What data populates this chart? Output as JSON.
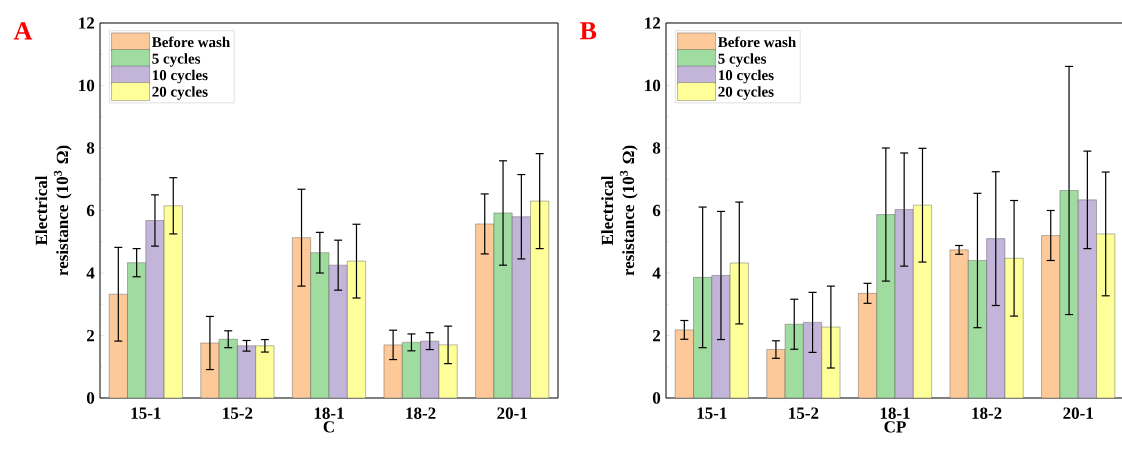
{
  "chart_data": [
    {
      "type": "bar",
      "title": "A",
      "xlabel": "C",
      "ylabel": "Electrical resistance (10$^{3}$ Ω)",
      "categories": [
        "15-1",
        "15-2",
        "18-1",
        "18-2",
        "20-1"
      ],
      "ylim": [
        0,
        12
      ],
      "yticks": [
        0,
        2,
        4,
        6,
        8,
        10,
        12
      ],
      "legend": "top left",
      "series": [
        {
          "name": "Before wash",
          "color": "#fdc998",
          "values": [
            3.32,
            1.76,
            5.13,
            1.7,
            5.57
          ],
          "errors": [
            1.5,
            0.85,
            1.55,
            0.47,
            0.96
          ]
        },
        {
          "name": "5 cycles",
          "color": "#a0dba0",
          "values": [
            4.33,
            1.88,
            4.65,
            1.78,
            5.92
          ],
          "errors": [
            0.45,
            0.27,
            0.65,
            0.27,
            1.67
          ]
        },
        {
          "name": "10 cycles",
          "color": "#c3b4d9",
          "values": [
            5.68,
            1.67,
            4.25,
            1.82,
            5.8
          ],
          "errors": [
            0.82,
            0.17,
            0.8,
            0.27,
            1.35
          ]
        },
        {
          "name": "20 cycles",
          "color": "#ffff99",
          "values": [
            6.15,
            1.67,
            4.38,
            1.7,
            6.3
          ],
          "errors": [
            0.9,
            0.2,
            1.18,
            0.6,
            1.52
          ]
        }
      ]
    },
    {
      "type": "bar",
      "title": "B",
      "xlabel": "CP",
      "ylabel": "Electrical resistance (10$^{3}$ Ω)",
      "categories": [
        "15-1",
        "15-2",
        "18-1",
        "18-2",
        "20-1"
      ],
      "ylim": [
        0,
        12
      ],
      "yticks": [
        0,
        2,
        4,
        6,
        8,
        10,
        12
      ],
      "legend": "top left",
      "series": [
        {
          "name": "Before wash",
          "color": "#fdc998",
          "values": [
            2.18,
            1.55,
            3.35,
            4.74,
            5.2
          ],
          "errors": [
            0.3,
            0.28,
            0.32,
            0.14,
            0.8
          ]
        },
        {
          "name": "5 cycles",
          "color": "#a0dba0",
          "values": [
            3.86,
            2.36,
            5.87,
            4.4,
            6.64
          ],
          "errors": [
            2.25,
            0.8,
            2.13,
            2.15,
            3.97
          ]
        },
        {
          "name": "10 cycles",
          "color": "#c3b4d9",
          "values": [
            3.92,
            2.42,
            6.03,
            5.1,
            6.34
          ],
          "errors": [
            2.05,
            0.96,
            1.81,
            2.14,
            1.56
          ]
        },
        {
          "name": "20 cycles",
          "color": "#ffff99",
          "values": [
            4.32,
            2.27,
            6.17,
            4.47,
            5.25
          ],
          "errors": [
            1.95,
            1.31,
            1.82,
            1.85,
            1.98
          ]
        }
      ]
    }
  ]
}
